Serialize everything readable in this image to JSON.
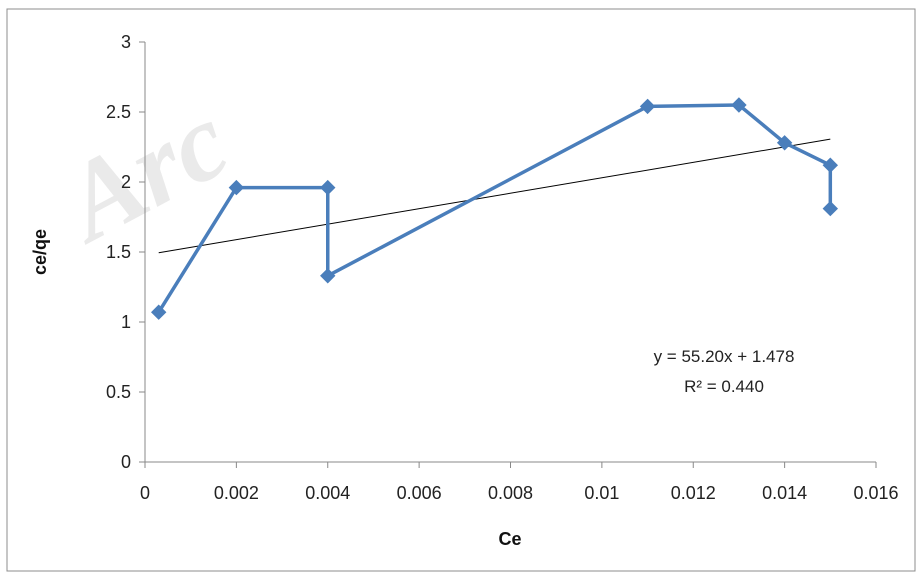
{
  "watermark": "Arc",
  "chart_data": {
    "type": "scatter",
    "xlabel": "Ce",
    "ylabel": "ce/qe",
    "xlim": [
      0,
      0.016
    ],
    "ylim": [
      0,
      3
    ],
    "x_ticks": [
      "0",
      "0.002",
      "0.004",
      "0.006",
      "0.008",
      "0.01",
      "0.012",
      "0.014",
      "0.016"
    ],
    "y_ticks": [
      "0",
      "0.5",
      "1",
      "1.5",
      "2",
      "2.5",
      "3"
    ],
    "grid": false,
    "series": [
      {
        "color": "#4a7ebb",
        "marker": "diamond",
        "connected": true,
        "points": [
          [
            0.0003,
            1.07
          ],
          [
            0.002,
            1.96
          ],
          [
            0.004,
            1.96
          ],
          [
            0.004,
            1.33
          ],
          [
            0.011,
            2.54
          ],
          [
            0.013,
            2.55
          ],
          [
            0.014,
            2.28
          ],
          [
            0.015,
            2.12
          ],
          [
            0.015,
            1.81
          ]
        ]
      }
    ],
    "trendline": {
      "slope": 55.2,
      "intercept": 1.478,
      "x_range": [
        0.0003,
        0.015
      ],
      "color": "#000000"
    },
    "annotations": {
      "equation": "y = 55.20x + 1.478",
      "r_squared": "R² = 0.440"
    }
  }
}
